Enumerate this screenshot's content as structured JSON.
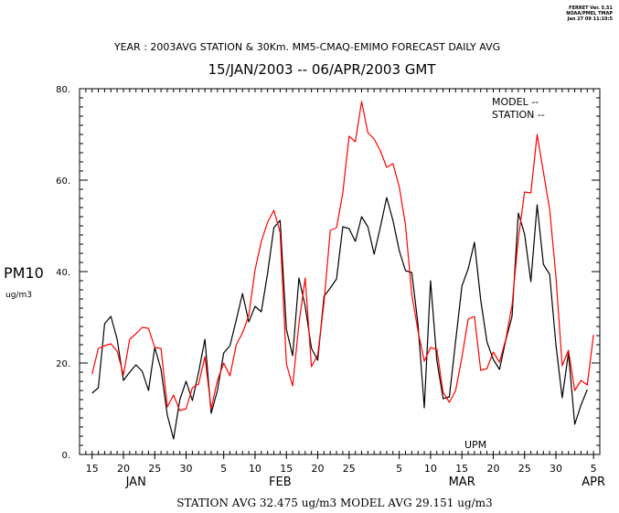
{
  "header": {
    "version_lines": [
      "FERRET Ver. 5.51",
      "NOAA/PMEL TMAP",
      "Jan 27 09 11:10:5"
    ],
    "title_line": "YEAR : 2003AVG STATION & 30Km. MM5-CMAQ-EMIMO  FORECAST DAILY AVG",
    "date_range": "15/JAN/2003  -- 06/APR/2003 GMT"
  },
  "footer": {
    "averages": "STATION AVG 32.475 ug/m3  MODEL AVG 29.151 ug/m3"
  },
  "colors": {
    "model": "#000000",
    "station": "#ff0000",
    "axis": "#000000"
  },
  "chart_data": {
    "type": "line",
    "title": "",
    "ylabel": "PM10",
    "yunit": "ug/m3",
    "ylim": [
      0,
      80
    ],
    "yticks": [
      0,
      20,
      40,
      60,
      80
    ],
    "ytick_labels": [
      "0.",
      "20.",
      "40.",
      "60.",
      "80."
    ],
    "xlim": [
      "2003-01-13",
      "2003-04-06"
    ],
    "xtick_labels": [
      {
        "date": "2003-01-15",
        "label": "15"
      },
      {
        "date": "2003-01-20",
        "label": "20"
      },
      {
        "date": "2003-01-25",
        "label": "25"
      },
      {
        "date": "2003-01-30",
        "label": "30"
      },
      {
        "date": "2003-02-05",
        "label": "5"
      },
      {
        "date": "2003-02-10",
        "label": "10"
      },
      {
        "date": "2003-02-15",
        "label": "15"
      },
      {
        "date": "2003-02-20",
        "label": "20"
      },
      {
        "date": "2003-02-25",
        "label": "25"
      },
      {
        "date": "2003-03-05",
        "label": "5"
      },
      {
        "date": "2003-03-10",
        "label": "10"
      },
      {
        "date": "2003-03-15",
        "label": "15"
      },
      {
        "date": "2003-03-20",
        "label": "20"
      },
      {
        "date": "2003-03-25",
        "label": "25"
      },
      {
        "date": "2003-03-30",
        "label": "30"
      },
      {
        "date": "2003-04-05",
        "label": "5"
      }
    ],
    "month_labels": [
      {
        "date": "2003-01-22",
        "label": "JAN"
      },
      {
        "date": "2003-02-14",
        "label": "FEB"
      },
      {
        "date": "2003-03-15",
        "label": "MAR"
      },
      {
        "date": "2003-04-05",
        "label": "APR"
      }
    ],
    "legend": {
      "placement": "top-right",
      "entries": [
        "MODEL --",
        "STATION --"
      ]
    },
    "annotation": "UPM",
    "series": [
      {
        "name": "MODEL",
        "color": "#000000",
        "points": [
          [
            "2003-01-15",
            13.4
          ],
          [
            "2003-01-16",
            14.6
          ],
          [
            "2003-01-17",
            28.6
          ],
          [
            "2003-01-18",
            30.2
          ],
          [
            "2003-01-19",
            25.2
          ],
          [
            "2003-01-20",
            16.2
          ],
          [
            "2003-01-21",
            18.0
          ],
          [
            "2003-01-22",
            19.6
          ],
          [
            "2003-01-23",
            18.2
          ],
          [
            "2003-01-24",
            14.0
          ],
          [
            "2003-01-25",
            23.4
          ],
          [
            "2003-01-26",
            18.6
          ],
          [
            "2003-01-27",
            8.6
          ],
          [
            "2003-01-28",
            3.4
          ],
          [
            "2003-01-29",
            12.0
          ],
          [
            "2003-01-30",
            16.0
          ],
          [
            "2003-01-31",
            11.8
          ],
          [
            "2003-02-01",
            18.0
          ],
          [
            "2003-02-02",
            25.2
          ],
          [
            "2003-02-03",
            9.0
          ],
          [
            "2003-02-04",
            14.0
          ],
          [
            "2003-02-05",
            22.2
          ],
          [
            "2003-02-06",
            23.8
          ],
          [
            "2003-02-07",
            29.4
          ],
          [
            "2003-02-08",
            35.2
          ],
          [
            "2003-02-09",
            29.0
          ],
          [
            "2003-02-10",
            32.4
          ],
          [
            "2003-02-11",
            31.2
          ],
          [
            "2003-02-12",
            39.6
          ],
          [
            "2003-02-13",
            49.6
          ],
          [
            "2003-02-14",
            51.2
          ],
          [
            "2003-02-15",
            27.4
          ],
          [
            "2003-02-16",
            21.6
          ],
          [
            "2003-02-17",
            38.6
          ],
          [
            "2003-02-18",
            32.4
          ],
          [
            "2003-02-19",
            23.2
          ],
          [
            "2003-02-20",
            20.6
          ],
          [
            "2003-02-21",
            34.6
          ],
          [
            "2003-02-22",
            36.4
          ],
          [
            "2003-02-23",
            38.4
          ],
          [
            "2003-02-24",
            49.8
          ],
          [
            "2003-02-25",
            49.4
          ],
          [
            "2003-02-26",
            46.6
          ],
          [
            "2003-02-27",
            52.0
          ],
          [
            "2003-02-28",
            49.8
          ],
          [
            "2003-03-01",
            43.8
          ],
          [
            "2003-03-02",
            49.8
          ],
          [
            "2003-03-03",
            56.2
          ],
          [
            "2003-03-04",
            51.2
          ],
          [
            "2003-03-05",
            44.6
          ],
          [
            "2003-03-06",
            40.2
          ],
          [
            "2003-03-07",
            39.8
          ],
          [
            "2003-03-08",
            28.4
          ],
          [
            "2003-03-09",
            10.2
          ],
          [
            "2003-03-10",
            38.0
          ],
          [
            "2003-03-11",
            20.6
          ],
          [
            "2003-03-12",
            12.2
          ],
          [
            "2003-03-13",
            12.6
          ],
          [
            "2003-03-14",
            24.8
          ],
          [
            "2003-03-15",
            36.8
          ],
          [
            "2003-03-16",
            40.6
          ],
          [
            "2003-03-17",
            46.4
          ],
          [
            "2003-03-18",
            33.8
          ],
          [
            "2003-03-19",
            24.6
          ],
          [
            "2003-03-20",
            20.8
          ],
          [
            "2003-03-21",
            18.6
          ],
          [
            "2003-03-22",
            25.0
          ],
          [
            "2003-03-23",
            30.2
          ],
          [
            "2003-03-24",
            52.8
          ],
          [
            "2003-03-25",
            48.2
          ],
          [
            "2003-03-26",
            37.8
          ],
          [
            "2003-03-27",
            54.6
          ],
          [
            "2003-03-28",
            41.6
          ],
          [
            "2003-03-29",
            39.4
          ],
          [
            "2003-03-30",
            24.0
          ],
          [
            "2003-03-31",
            12.4
          ],
          [
            "2003-04-01",
            22.2
          ],
          [
            "2003-04-02",
            6.6
          ],
          [
            "2003-04-03",
            10.8
          ],
          [
            "2003-04-04",
            14.2
          ]
        ]
      },
      {
        "name": "STATION",
        "color": "#ff0000",
        "points": [
          [
            "2003-01-15",
            17.6
          ],
          [
            "2003-01-16",
            23.2
          ],
          [
            "2003-01-17",
            23.8
          ],
          [
            "2003-01-18",
            24.2
          ],
          [
            "2003-01-19",
            22.6
          ],
          [
            "2003-01-20",
            17.4
          ],
          [
            "2003-01-21",
            25.2
          ],
          [
            "2003-01-22",
            26.4
          ],
          [
            "2003-01-23",
            27.8
          ],
          [
            "2003-01-24",
            27.6
          ],
          [
            "2003-01-25",
            23.4
          ],
          [
            "2003-01-26",
            23.2
          ],
          [
            "2003-01-27",
            10.4
          ],
          [
            "2003-01-28",
            13.0
          ],
          [
            "2003-01-29",
            9.6
          ],
          [
            "2003-01-30",
            10.0
          ],
          [
            "2003-01-31",
            14.6
          ],
          [
            "2003-02-01",
            15.4
          ],
          [
            "2003-02-02",
            21.4
          ],
          [
            "2003-02-03",
            10.0
          ],
          [
            "2003-02-04",
            16.2
          ],
          [
            "2003-02-05",
            20.0
          ],
          [
            "2003-02-06",
            17.2
          ],
          [
            "2003-02-07",
            24.0
          ],
          [
            "2003-02-08",
            26.6
          ],
          [
            "2003-02-09",
            30.4
          ],
          [
            "2003-02-10",
            40.4
          ],
          [
            "2003-02-11",
            46.6
          ],
          [
            "2003-02-12",
            50.8
          ],
          [
            "2003-02-13",
            53.4
          ],
          [
            "2003-02-14",
            48.6
          ],
          [
            "2003-02-15",
            19.8
          ],
          [
            "2003-02-16",
            15.0
          ],
          [
            "2003-02-17",
            28.6
          ],
          [
            "2003-02-18",
            38.6
          ],
          [
            "2003-02-19",
            19.2
          ],
          [
            "2003-02-20",
            21.8
          ],
          [
            "2003-02-21",
            33.2
          ],
          [
            "2003-02-22",
            49.0
          ],
          [
            "2003-02-23",
            49.6
          ],
          [
            "2003-02-24",
            57.2
          ],
          [
            "2003-02-25",
            69.6
          ],
          [
            "2003-02-26",
            68.4
          ],
          [
            "2003-02-27",
            77.2
          ],
          [
            "2003-02-28",
            70.4
          ],
          [
            "2003-03-01",
            69.0
          ],
          [
            "2003-03-02",
            66.4
          ],
          [
            "2003-03-03",
            62.8
          ],
          [
            "2003-03-04",
            63.6
          ],
          [
            "2003-03-05",
            58.6
          ],
          [
            "2003-03-06",
            50.2
          ],
          [
            "2003-03-07",
            35.0
          ],
          [
            "2003-03-08",
            27.0
          ],
          [
            "2003-03-09",
            20.4
          ],
          [
            "2003-03-10",
            23.4
          ],
          [
            "2003-03-11",
            23.0
          ],
          [
            "2003-03-12",
            13.6
          ],
          [
            "2003-03-13",
            11.4
          ],
          [
            "2003-03-14",
            14.0
          ],
          [
            "2003-03-15",
            21.2
          ],
          [
            "2003-03-16",
            29.6
          ],
          [
            "2003-03-17",
            30.2
          ],
          [
            "2003-03-18",
            18.4
          ],
          [
            "2003-03-19",
            18.8
          ],
          [
            "2003-03-20",
            22.4
          ],
          [
            "2003-03-21",
            20.2
          ],
          [
            "2003-03-22",
            25.2
          ],
          [
            "2003-03-23",
            32.6
          ],
          [
            "2003-03-24",
            47.2
          ],
          [
            "2003-03-25",
            57.4
          ],
          [
            "2003-03-26",
            57.2
          ],
          [
            "2003-03-27",
            70.0
          ],
          [
            "2003-03-28",
            61.8
          ],
          [
            "2003-03-29",
            53.6
          ],
          [
            "2003-03-30",
            39.0
          ],
          [
            "2003-03-31",
            19.4
          ],
          [
            "2003-04-01",
            22.8
          ],
          [
            "2003-04-02",
            14.0
          ],
          [
            "2003-04-03",
            16.2
          ],
          [
            "2003-04-04",
            15.2
          ],
          [
            "2003-04-05",
            26.2
          ]
        ]
      }
    ]
  }
}
